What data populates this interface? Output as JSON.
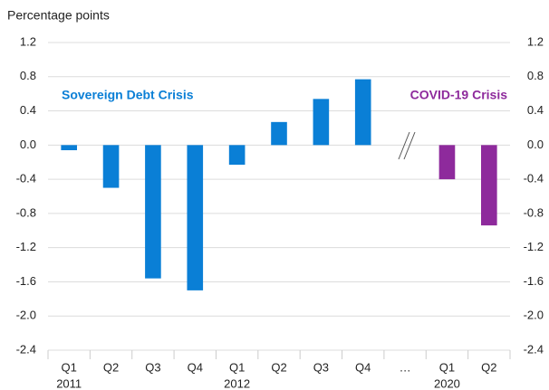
{
  "chart_data": {
    "type": "bar",
    "y_label": "Percentage points",
    "categories": [
      "Q1",
      "Q2",
      "Q3",
      "Q4",
      "Q1",
      "Q2",
      "Q3",
      "Q4",
      "…",
      "Q1",
      "Q2"
    ],
    "group_labels": [
      "2011",
      null,
      null,
      null,
      "2012",
      null,
      null,
      null,
      null,
      "2020",
      null
    ],
    "values": [
      -0.06,
      -0.5,
      -1.56,
      -1.7,
      -0.23,
      0.27,
      0.54,
      0.77,
      null,
      -0.4,
      -0.94
    ],
    "colors": [
      "#0a7fd6",
      "#0a7fd6",
      "#0a7fd6",
      "#0a7fd6",
      "#0a7fd6",
      "#0a7fd6",
      "#0a7fd6",
      "#0a7fd6",
      null,
      "#8e2a9c",
      "#8e2a9c"
    ],
    "annotations": [
      {
        "text": "Sovereign Debt Crisis",
        "color": "#0a7fd6"
      },
      {
        "text": "COVID-19 Crisis",
        "color": "#8e2a9c"
      }
    ],
    "ylim": [
      -2.4,
      1.2
    ],
    "yticks": [
      1.2,
      0.8,
      0.4,
      {
        "value": 0,
        "label": "0.0"
      },
      -0.4,
      -0.8,
      -1.2,
      -1.6,
      {
        "value": -2,
        "label": "-2.0"
      },
      -2.4
    ],
    "y2lim": [
      -2.4,
      1.2
    ],
    "y2ticks": [
      1.2,
      0.8,
      0.4,
      {
        "value": 0,
        "label": "0.0"
      },
      -0.4,
      -0.8,
      -1.2,
      -1.6,
      {
        "value": -2,
        "label": "-2.0"
      },
      -2.4
    ],
    "grid": true
  }
}
